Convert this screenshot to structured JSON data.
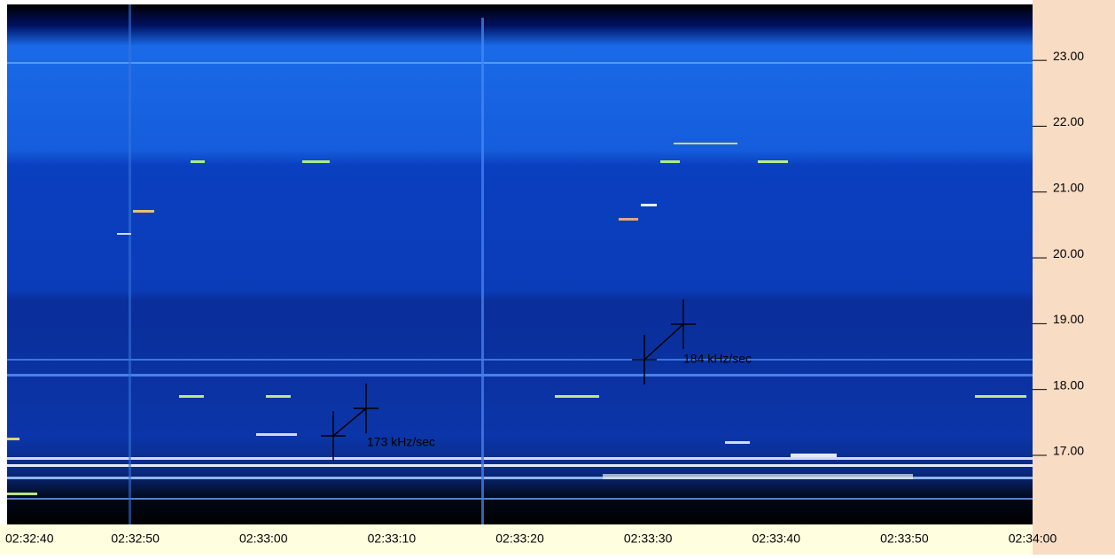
{
  "chart_data": {
    "type": "spectrogram",
    "categories": [
      "02:32:40",
      "02:32:50",
      "02:33:00",
      "02:33:10",
      "02:33:20",
      "02:33:30",
      "02:33:40",
      "02:33:50",
      "02:34:00"
    ],
    "ylim": [
      15.95,
      23.85
    ],
    "yticks": [
      {
        "value": 17,
        "label": "17.00"
      },
      {
        "value": 18,
        "label": "18.00"
      },
      {
        "value": 19,
        "label": "19.00"
      },
      {
        "value": 20,
        "label": "20.00"
      },
      {
        "value": 21,
        "label": "21.00"
      },
      {
        "value": 22,
        "label": "22.00"
      },
      {
        "value": 23,
        "label": "23.00"
      }
    ],
    "annotations": [
      "173 kHz/sec",
      "184 kHz/sec"
    ]
  }
}
